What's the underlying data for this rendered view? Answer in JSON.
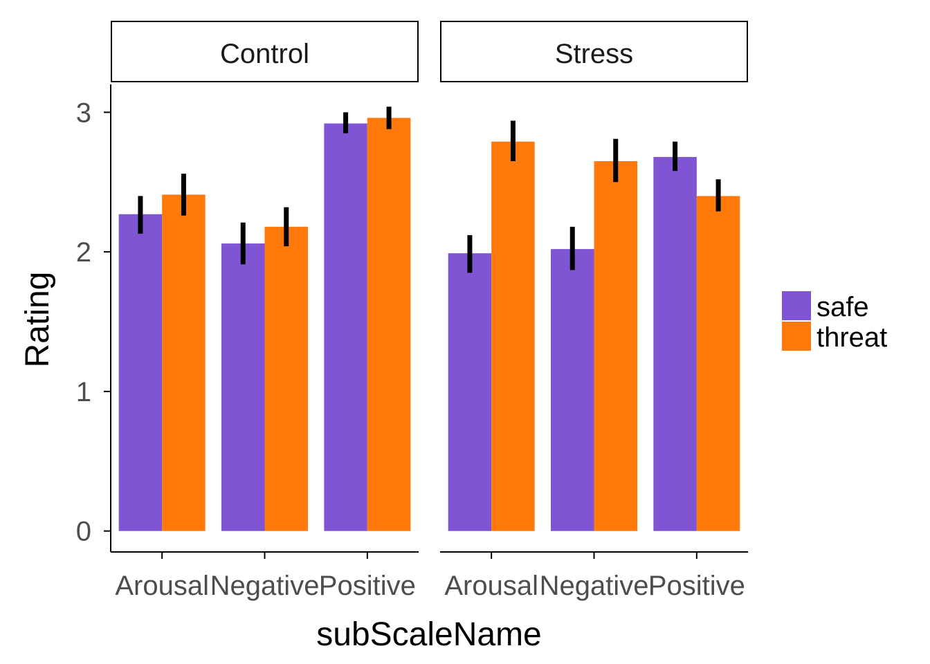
{
  "chart_data": {
    "type": "bar",
    "xlabel": "subScaleName",
    "ylabel": "Rating",
    "ylim": [
      -0.15,
      3.2
    ],
    "yticks": [
      0,
      1,
      2,
      3
    ],
    "grid": false,
    "legend_position": "right",
    "categories": [
      "Arousal",
      "Negative",
      "Positive"
    ],
    "series_colors": {
      "safe": "#8055d4",
      "threat": "#ff7a0a"
    },
    "panels": [
      {
        "label": "Control",
        "series": [
          {
            "name": "safe",
            "values": [
              2.27,
              2.06,
              2.92
            ],
            "err_low": [
              2.13,
              1.91,
              2.85
            ],
            "err_high": [
              2.4,
              2.21,
              3.0
            ]
          },
          {
            "name": "threat",
            "values": [
              2.41,
              2.18,
              2.96
            ],
            "err_low": [
              2.26,
              2.04,
              2.88
            ],
            "err_high": [
              2.56,
              2.32,
              3.04
            ]
          }
        ]
      },
      {
        "label": "Stress",
        "series": [
          {
            "name": "safe",
            "values": [
              1.99,
              2.02,
              2.68
            ],
            "err_low": [
              1.85,
              1.87,
              2.58
            ],
            "err_high": [
              2.12,
              2.18,
              2.79
            ]
          },
          {
            "name": "threat",
            "values": [
              2.79,
              2.65,
              2.4
            ],
            "err_low": [
              2.65,
              2.5,
              2.29
            ],
            "err_high": [
              2.94,
              2.81,
              2.52
            ]
          }
        ]
      }
    ],
    "legend": [
      "safe",
      "threat"
    ]
  }
}
